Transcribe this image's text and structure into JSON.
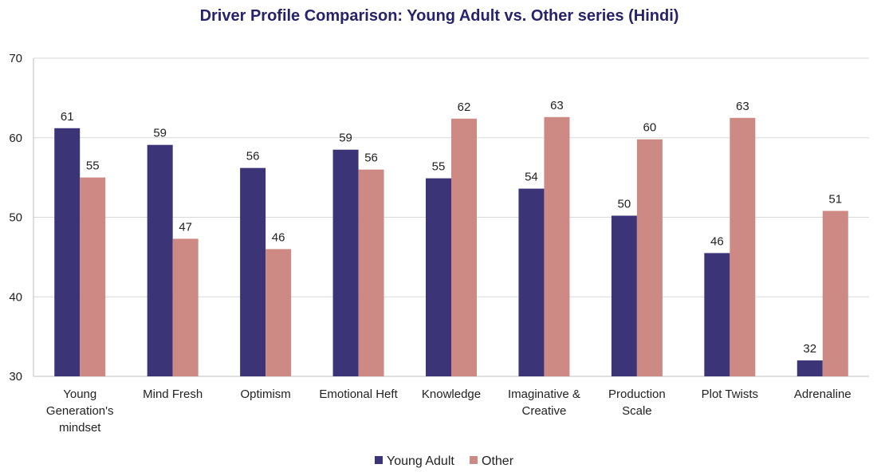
{
  "chart_data": {
    "type": "bar",
    "title": "Driver Profile Comparison: Young Adult vs. Other series (Hindi)",
    "xlabel": "",
    "ylabel": "",
    "ylim": [
      30,
      70
    ],
    "yticks": [
      "30",
      "40",
      "50",
      "60",
      "70"
    ],
    "grid": true,
    "legend_position": "bottom",
    "categories": [
      [
        "Young",
        "Generation's",
        "mindset"
      ],
      [
        "Mind Fresh"
      ],
      [
        "Optimism"
      ],
      [
        "Emotional Heft"
      ],
      [
        "Knowledge"
      ],
      [
        "Imaginative &",
        "Creative"
      ],
      [
        "Production",
        "Scale"
      ],
      [
        "Plot Twists"
      ],
      [
        "Adrenaline"
      ]
    ],
    "series": [
      {
        "name": "Young Adult",
        "color": "#3b3577",
        "values": [
          61.2,
          59.1,
          56.2,
          58.5,
          54.9,
          53.6,
          50.2,
          45.5,
          32.0
        ],
        "labels": [
          "61",
          "59",
          "56",
          "59",
          "55",
          "54",
          "50",
          "46",
          "32"
        ]
      },
      {
        "name": "Other",
        "color": "#cd8a85",
        "values": [
          55.0,
          47.3,
          46.0,
          56.0,
          62.4,
          62.6,
          59.8,
          62.5,
          50.8
        ],
        "labels": [
          "55",
          "47",
          "46",
          "56",
          "62",
          "63",
          "60",
          "63",
          "51"
        ]
      }
    ],
    "colors": {
      "title": "#27236b",
      "gridline": "#d9d9d9",
      "axis": "#bfbfbf"
    }
  }
}
